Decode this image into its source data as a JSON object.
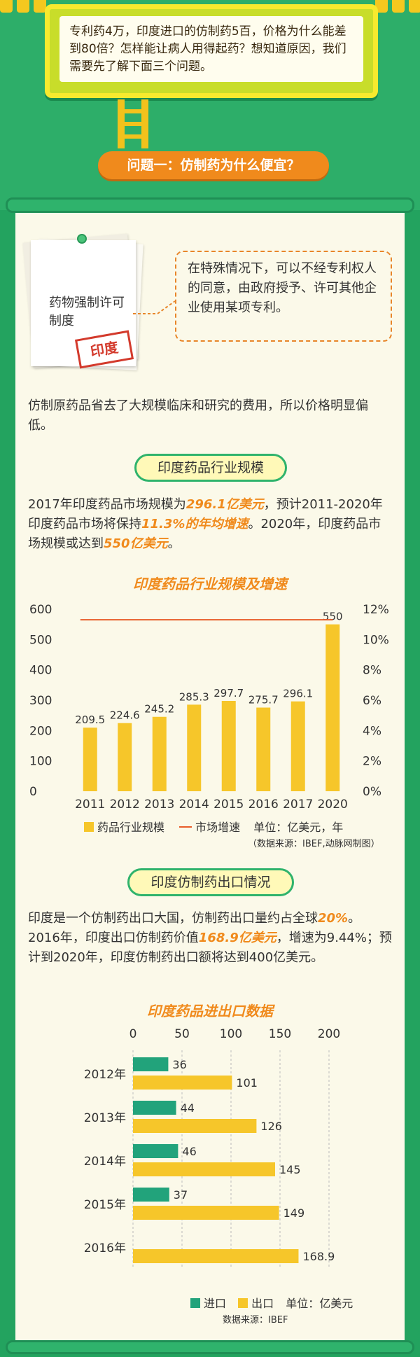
{
  "intro": {
    "text": "专利药4万，印度进口的仿制药5百，价格为什么能差到80倍？怎样能让病人用得起药？想知道原因，我们需要先了解下面三个问题。"
  },
  "question1": {
    "label": "问题一：仿制药为什么便宜？"
  },
  "note": {
    "title": "药物强制许可制度",
    "stamp": "印度"
  },
  "bubble": {
    "text": "在特殊情况下，可以不经专利权人的同意，由政府授予、许可其他企业使用某项专利。"
  },
  "para1": {
    "text": "仿制原药品省去了大规模临床和研究的费用，所以价格明显偏低。"
  },
  "section1": {
    "pill": "印度药品行业规模",
    "p_a": "2017年印度药品市场规模为",
    "p_b": "296.1亿美元",
    "p_c": "，预计2011-2020年印度药品市场将保持",
    "p_d": "11.3%的年均增速",
    "p_e": "。2020年，印度药品市场规模或达到",
    "p_f": "550亿美元",
    "p_g": "。"
  },
  "section2": {
    "pill": "印度仿制药出口情况",
    "p_a": "印度是一个仿制药出口大国，仿制药出口量约占全球",
    "p_b": "20%",
    "p_c": "。2016年，印度出口仿制药价值",
    "p_d": "168.9亿美元",
    "p_e": "，增速为9.44%；预计到2020年，印度仿制药出口额将达到400亿美元。"
  },
  "colors": {
    "green": "#23a35f",
    "orange": "#f08a1c",
    "yellow": "#f6c62a",
    "teal": "#22a37b",
    "line": "#e85d2a"
  },
  "chart_data": [
    {
      "type": "bar",
      "title": "印度药品行业规模及增速",
      "categories": [
        "2011",
        "2012",
        "2013",
        "2014",
        "2015",
        "2016",
        "2017",
        "2020"
      ],
      "series": [
        {
          "name": "药品行业规模",
          "values": [
            209.5,
            224.6,
            245.2,
            285.3,
            297.7,
            275.7,
            296.1,
            550
          ],
          "color": "#f6c62a"
        },
        {
          "name": "市场增速",
          "type": "line",
          "values": [
            11.3,
            11.3,
            11.3,
            11.3,
            11.3,
            11.3,
            11.3,
            11.3
          ],
          "color": "#e85d2a"
        }
      ],
      "ylim": [
        0,
        600
      ],
      "yticks": [
        "0",
        "100",
        "200",
        "300",
        "400",
        "500",
        "600"
      ],
      "y2lim": [
        0,
        12
      ],
      "y2ticks": [
        "0%",
        "2%",
        "4%",
        "6%",
        "8%",
        "10%",
        "12%"
      ],
      "unit_label": "单位：亿美元，年",
      "source": "（数据来源：IBEF,动脉网制图）",
      "grid": false
    },
    {
      "type": "bar",
      "orientation": "horizontal",
      "title": "印度药品进出口数据",
      "categories": [
        "2012年",
        "2013年",
        "2014年",
        "2015年",
        "2016年"
      ],
      "series": [
        {
          "name": "进口",
          "values": [
            36,
            44,
            46,
            37,
            null
          ],
          "color": "#22a37b"
        },
        {
          "name": "出口",
          "values": [
            101,
            126,
            145,
            149,
            168.9
          ],
          "color": "#f6c62a"
        }
      ],
      "xlim": [
        0,
        200
      ],
      "xticks": [
        "0",
        "50",
        "100",
        "150",
        "200"
      ],
      "unit_label": "单位：亿美元",
      "source": "数据来源：IBEF",
      "grid": true
    }
  ]
}
